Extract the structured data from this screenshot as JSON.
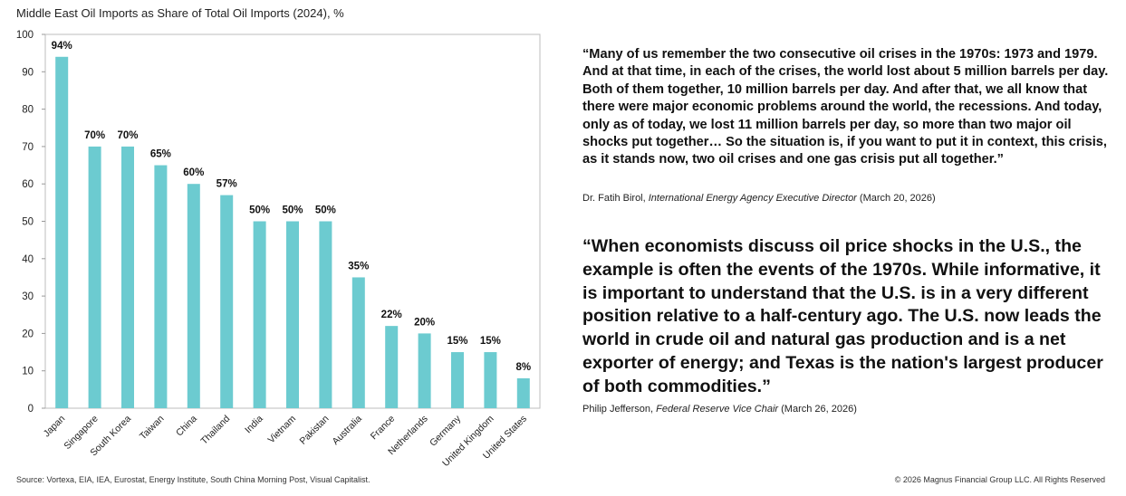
{
  "chart_data": {
    "type": "bar",
    "title": "Middle East Oil Imports as Share of Total Oil Imports (2024), %",
    "categories": [
      "Japan",
      "Singapore",
      "South Korea",
      "Taiwan",
      "China",
      "Thailand",
      "India",
      "Vietnam",
      "Pakistan",
      "Australia",
      "France",
      "Netherlands",
      "Germany",
      "United Kingdom",
      "United States"
    ],
    "values": [
      94,
      70,
      70,
      65,
      60,
      57,
      50,
      50,
      50,
      35,
      22,
      20,
      15,
      15,
      8
    ],
    "data_labels": [
      "94%",
      "70%",
      "70%",
      "65%",
      "60%",
      "57%",
      "50%",
      "50%",
      "50%",
      "35%",
      "22%",
      "20%",
      "15%",
      "15%",
      "8%"
    ],
    "yticks": [
      0,
      10,
      20,
      30,
      40,
      50,
      60,
      70,
      80,
      90,
      100
    ],
    "ylim": [
      0,
      100
    ],
    "xlabel": "",
    "ylabel": "",
    "grid": false,
    "bar_color": "#6ccbd0"
  },
  "quote1": {
    "text": "“Many of us remember the two consecutive oil crises in the 1970s: 1973 and 1979. And at that time, in each of the crises, the world lost about 5 million barrels per day. Both of them together, 10 million barrels per day. And after that, we all know that there were major economic problems around the world, the recessions. And today, only as of today, we lost 11 million barrels per day, so more than two major oil shocks put together… So the situation is, if you want to put it in context, this crisis, as it stands now, two oil crises and one gas crisis put all together.”",
    "speaker": "Dr. Fatih Birol,",
    "role": "International Energy Agency Executive Director",
    "date": "(March 20, 2026)"
  },
  "quote2": {
    "text": "“When economists discuss oil price shocks in the U.S., the example is often the events of the 1970s. While informative, it is important to understand that the U.S. is in a very different position relative to a half-century ago. The U.S. now leads the world in crude oil and natural gas production and is a net exporter of energy; and Texas is the nation's largest producer of both commodities.”",
    "speaker": "Philip Jefferson,",
    "role": "Federal Reserve Vice Chair",
    "date": "(March 26, 2026)"
  },
  "footer": {
    "source": "Source: Vortexa, EIA, IEA, Eurostat, Energy Institute, South China Morning Post, Visual Capitalist.",
    "copyright": "© 2026 Magnus Financial Group LLC. All Rights Reserved"
  }
}
